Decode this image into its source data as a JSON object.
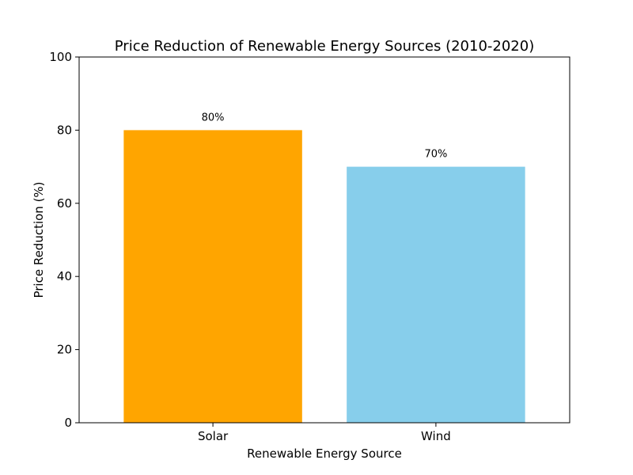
{
  "chart_data": {
    "type": "bar",
    "title": "Price Reduction of Renewable Energy Sources (2010-2020)",
    "xlabel": "Renewable Energy Source",
    "ylabel": "Price Reduction (%)",
    "categories": [
      "Solar",
      "Wind"
    ],
    "values": [
      80,
      70
    ],
    "data_labels": [
      "80%",
      "70%"
    ],
    "colors": [
      "#FFA500",
      "#87CEEB"
    ],
    "ylim": [
      0,
      100
    ],
    "yticks": [
      0,
      20,
      40,
      60,
      80,
      100
    ],
    "ytick_labels": [
      "0",
      "20",
      "40",
      "60",
      "80",
      "100"
    ],
    "grid": false,
    "legend": false
  }
}
